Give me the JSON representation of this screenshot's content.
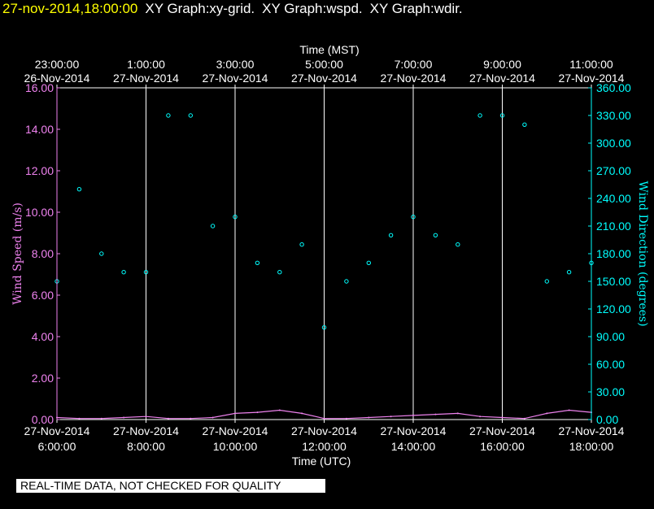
{
  "header": {
    "timestamp": "27-nov-2014,18:00:00",
    "titles": [
      "XY Graph:xy-grid.",
      "XY Graph:wspd.",
      "XY Graph:wdir."
    ]
  },
  "colors": {
    "background": "#000000",
    "timestamp": "#ffff00",
    "wind_speed": "#ee82ee",
    "wind_direction": "#00ffff",
    "axis": "#ffffff"
  },
  "quality_notice": "REAL-TIME DATA, NOT CHECKED FOR QUALITY",
  "chart_data": {
    "type": "scatter",
    "top_axis_label": "Time (MST)",
    "bottom_axis_label": "Time (UTC)",
    "ylabel_left": "Wind Speed (m/s)",
    "ylabel_right": "Wind Direction (degrees)",
    "xlim_utc": [
      "27-Nov-2014 6:00:00",
      "27-Nov-2014 18:00:00"
    ],
    "ylim_left": [
      0,
      16
    ],
    "ylim_right": [
      0,
      360
    ],
    "grid": "vertical",
    "top_ticks": [
      {
        "time": "23:00:00",
        "date": "26-Nov-2014"
      },
      {
        "time": "1:00:00",
        "date": "27-Nov-2014"
      },
      {
        "time": "3:00:00",
        "date": "27-Nov-2014"
      },
      {
        "time": "5:00:00",
        "date": "27-Nov-2014"
      },
      {
        "time": "7:00:00",
        "date": "27-Nov-2014"
      },
      {
        "time": "9:00:00",
        "date": "27-Nov-2014"
      },
      {
        "time": "11:00:00",
        "date": "27-Nov-2014"
      }
    ],
    "bottom_ticks": [
      {
        "date": "27-Nov-2014",
        "time": "6:00:00"
      },
      {
        "date": "27-Nov-2014",
        "time": "8:00:00"
      },
      {
        "date": "27-Nov-2014",
        "time": "10:00:00"
      },
      {
        "date": "27-Nov-2014",
        "time": "12:00:00"
      },
      {
        "date": "27-Nov-2014",
        "time": "14:00:00"
      },
      {
        "date": "27-Nov-2014",
        "time": "16:00:00"
      },
      {
        "date": "27-Nov-2014",
        "time": "18:00:00"
      }
    ],
    "left_ticks": [
      "0.00",
      "2.00",
      "4.00",
      "6.00",
      "8.00",
      "10.00",
      "12.00",
      "14.00",
      "16.00"
    ],
    "right_ticks": [
      "0.00",
      "30.00",
      "60.00",
      "90.00",
      "120.00",
      "150.00",
      "180.00",
      "210.00",
      "240.00",
      "270.00",
      "300.00",
      "330.00",
      "360.00"
    ],
    "series": [
      {
        "key": "wspd",
        "color": "#ee82ee",
        "axis": "left",
        "hours_utc": [
          6.0,
          6.5,
          7.0,
          7.5,
          8.0,
          8.5,
          9.0,
          9.5,
          10.0,
          10.5,
          11.0,
          11.5,
          12.0,
          12.5,
          13.0,
          13.5,
          14.0,
          14.5,
          15.0,
          15.5,
          16.0,
          16.5,
          17.0,
          17.5,
          18.0
        ],
        "values": [
          0.1,
          0.05,
          0.05,
          0.1,
          0.15,
          0.05,
          0.05,
          0.1,
          0.3,
          0.35,
          0.45,
          0.3,
          0.05,
          0.05,
          0.1,
          0.15,
          0.2,
          0.25,
          0.3,
          0.15,
          0.1,
          0.05,
          0.3,
          0.45,
          0.35
        ]
      },
      {
        "key": "wdir",
        "color": "#00ffff",
        "axis": "right",
        "hours_utc": [
          6.0,
          6.5,
          7.0,
          7.5,
          8.0,
          8.5,
          9.0,
          9.5,
          10.0,
          10.5,
          11.0,
          11.5,
          12.0,
          12.5,
          13.0,
          13.5,
          14.0,
          14.5,
          15.0,
          15.5,
          16.0,
          16.5,
          17.0,
          17.5,
          18.0
        ],
        "values": [
          150,
          250,
          180,
          160,
          160,
          330,
          330,
          210,
          220,
          170,
          160,
          190,
          100,
          150,
          170,
          200,
          220,
          200,
          190,
          330,
          330,
          320,
          150,
          160,
          170
        ]
      }
    ]
  }
}
